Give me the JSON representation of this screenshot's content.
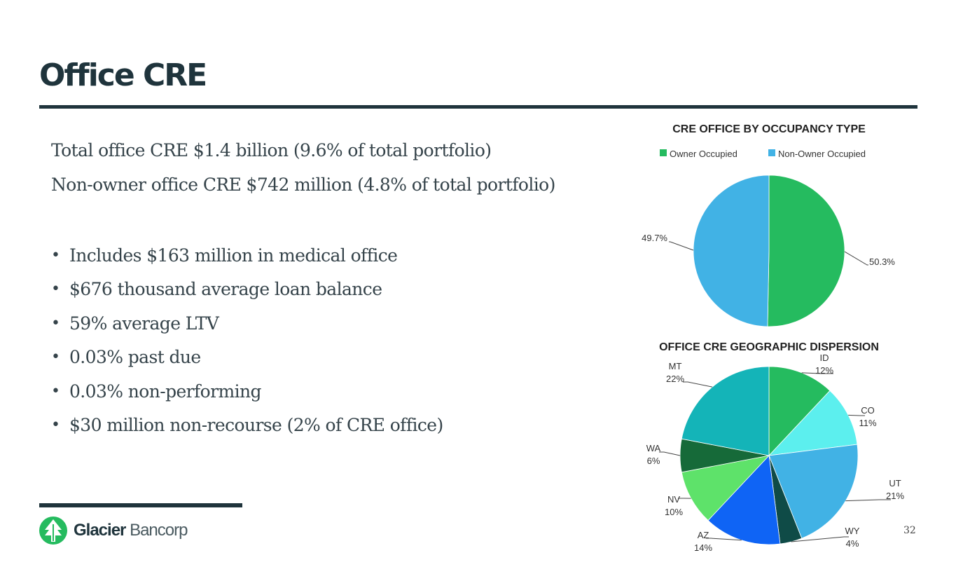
{
  "slide": {
    "title": "Office CRE",
    "headlines": [
      "Total office CRE $1.4 billion (9.6% of total portfolio)",
      "Non-owner office CRE $742 million (4.8% of total portfolio)"
    ],
    "bullet_marker": "•",
    "bullets": [
      "Includes $163 million in medical office",
      "$676 thousand average loan balance",
      "59% average LTV",
      "0.03% past due",
      "0.03% non-performing",
      "$30 million non-recourse (2% of CRE office)"
    ],
    "logo": {
      "brand": "Glacier",
      "suffix": "Bancorp"
    },
    "page_number": "32"
  },
  "chart_data": [
    {
      "type": "pie",
      "title": "CRE OFFICE BY OCCUPANCY TYPE",
      "legend_position": "top",
      "categories": [
        "Owner Occupied",
        "Non-Owner Occupied"
      ],
      "values": [
        50.3,
        49.7
      ],
      "labels": [
        "50.3%",
        "49.7%"
      ],
      "colors": [
        "#25bb5f",
        "#41b2e5"
      ]
    },
    {
      "type": "pie",
      "title": "OFFICE CRE GEOGRAPHIC DISPERSION",
      "categories": [
        "ID",
        "CO",
        "UT",
        "WY",
        "AZ",
        "NV",
        "WA",
        "MT"
      ],
      "values": [
        12,
        11,
        21,
        4,
        14,
        10,
        6,
        22
      ],
      "labels": [
        "12%",
        "11%",
        "21%",
        "4%",
        "14%",
        "10%",
        "6%",
        "22%"
      ],
      "colors": [
        "#25bb5f",
        "#5cefee",
        "#41b2e5",
        "#0f4b47",
        "#0f64f5",
        "#5ee26a",
        "#166a39",
        "#14b4b8"
      ]
    }
  ]
}
